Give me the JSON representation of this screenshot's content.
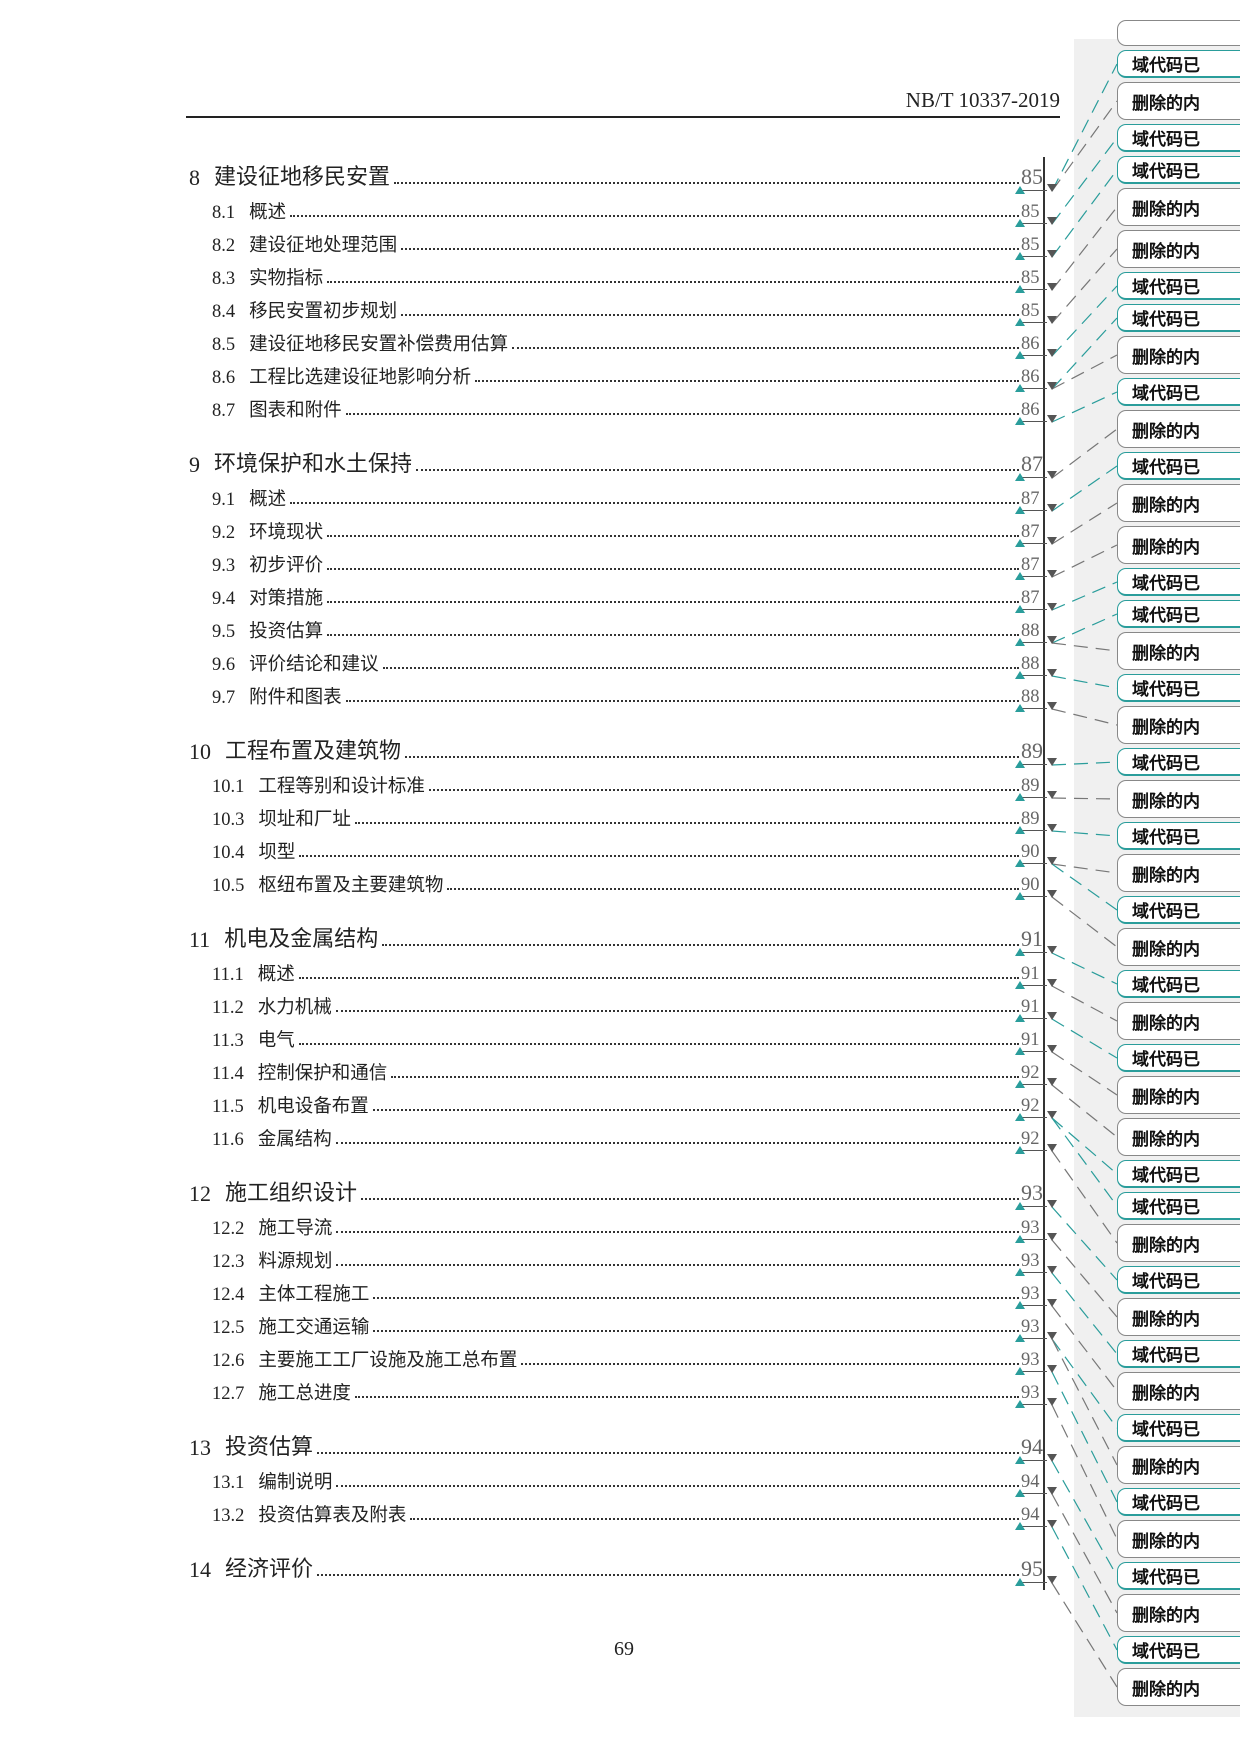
{
  "header": {
    "standard_code": "NB/T 10337-2019"
  },
  "toc": [
    {
      "level": 1,
      "num": "8",
      "title": "建设征地移民安置",
      "page": "85"
    },
    {
      "level": 2,
      "num": "8.1",
      "title": "概述",
      "page": "85"
    },
    {
      "level": 2,
      "num": "8.2",
      "title": "建设征地处理范围",
      "page": "85"
    },
    {
      "level": 2,
      "num": "8.3",
      "title": "实物指标",
      "page": "85"
    },
    {
      "level": 2,
      "num": "8.4",
      "title": "移民安置初步规划",
      "page": "85"
    },
    {
      "level": 2,
      "num": "8.5",
      "title": "建设征地移民安置补偿费用估算",
      "page": "86"
    },
    {
      "level": 2,
      "num": "8.6",
      "title": "工程比选建设征地影响分析",
      "page": "86"
    },
    {
      "level": 2,
      "num": "8.7",
      "title": "图表和附件",
      "page": "86"
    },
    {
      "level": 1,
      "num": "9",
      "title": "环境保护和水土保持",
      "page": "87"
    },
    {
      "level": 2,
      "num": "9.1",
      "title": "概述",
      "page": "87"
    },
    {
      "level": 2,
      "num": "9.2",
      "title": "环境现状",
      "page": "87"
    },
    {
      "level": 2,
      "num": "9.3",
      "title": "初步评价",
      "page": "87"
    },
    {
      "level": 2,
      "num": "9.4",
      "title": "对策措施",
      "page": "87"
    },
    {
      "level": 2,
      "num": "9.5",
      "title": "投资估算",
      "page": "88"
    },
    {
      "level": 2,
      "num": "9.6",
      "title": "评价结论和建议",
      "page": "88"
    },
    {
      "level": 2,
      "num": "9.7",
      "title": "附件和图表",
      "page": "88"
    },
    {
      "level": 1,
      "num": "10",
      "title": "工程布置及建筑物",
      "page": "89"
    },
    {
      "level": 2,
      "num": "10.1",
      "title": "工程等别和设计标准",
      "page": "89"
    },
    {
      "level": 2,
      "num": "10.3",
      "title": "坝址和厂址",
      "page": "89"
    },
    {
      "level": 2,
      "num": "10.4",
      "title": "坝型",
      "page": "90"
    },
    {
      "level": 2,
      "num": "10.5",
      "title": "枢纽布置及主要建筑物",
      "page": "90"
    },
    {
      "level": 1,
      "num": "11",
      "title": "机电及金属结构",
      "page": "91"
    },
    {
      "level": 2,
      "num": "11.1",
      "title": "概述",
      "page": "91"
    },
    {
      "level": 2,
      "num": "11.2",
      "title": "水力机械",
      "page": "91"
    },
    {
      "level": 2,
      "num": "11.3",
      "title": "电气",
      "page": "91"
    },
    {
      "level": 2,
      "num": "11.4",
      "title": "控制保护和通信",
      "page": "92"
    },
    {
      "level": 2,
      "num": "11.5",
      "title": "机电设备布置",
      "page": "92"
    },
    {
      "level": 2,
      "num": "11.6",
      "title": "金属结构",
      "page": "92"
    },
    {
      "level": 1,
      "num": "12",
      "title": "施工组织设计",
      "page": "93"
    },
    {
      "level": 2,
      "num": "12.2",
      "title": "施工导流",
      "page": "93"
    },
    {
      "level": 2,
      "num": "12.3",
      "title": "料源规划",
      "page": "93"
    },
    {
      "level": 2,
      "num": "12.4",
      "title": "主体工程施工",
      "page": "93"
    },
    {
      "level": 2,
      "num": "12.5",
      "title": "施工交通运输",
      "page": "93"
    },
    {
      "level": 2,
      "num": "12.6",
      "title": "主要施工工厂设施及施工总布置",
      "page": "93"
    },
    {
      "level": 2,
      "num": "12.7",
      "title": "施工总进度",
      "page": "93"
    },
    {
      "level": 1,
      "num": "13",
      "title": "投资估算",
      "page": "94"
    },
    {
      "level": 2,
      "num": "13.1",
      "title": "编制说明",
      "page": "94"
    },
    {
      "level": 2,
      "num": "13.2",
      "title": "投资估算表及附表",
      "page": "94"
    },
    {
      "level": 1,
      "num": "14",
      "title": "经济评价",
      "page": "95"
    }
  ],
  "footer": {
    "page_number": "69"
  },
  "revision_pane": {
    "balloon_types": {
      "field": "域代码已",
      "del": "删除的内"
    },
    "balloons": [
      "field",
      "del",
      "field",
      "field",
      "del",
      "del",
      "field",
      "field",
      "del",
      "field",
      "del",
      "field",
      "del",
      "del",
      "field",
      "field",
      "del",
      "field",
      "del",
      "field",
      "del",
      "field",
      "del",
      "field",
      "del",
      "field",
      "del",
      "field",
      "del",
      "del",
      "field",
      "field",
      "del",
      "field",
      "del",
      "field",
      "del",
      "field",
      "del",
      "field",
      "del",
      "field",
      "del",
      "field",
      "del"
    ],
    "colors": {
      "field_border": "#2a9d9b",
      "del_border": "#888888",
      "pane_bg": "#f0f0f0"
    }
  }
}
